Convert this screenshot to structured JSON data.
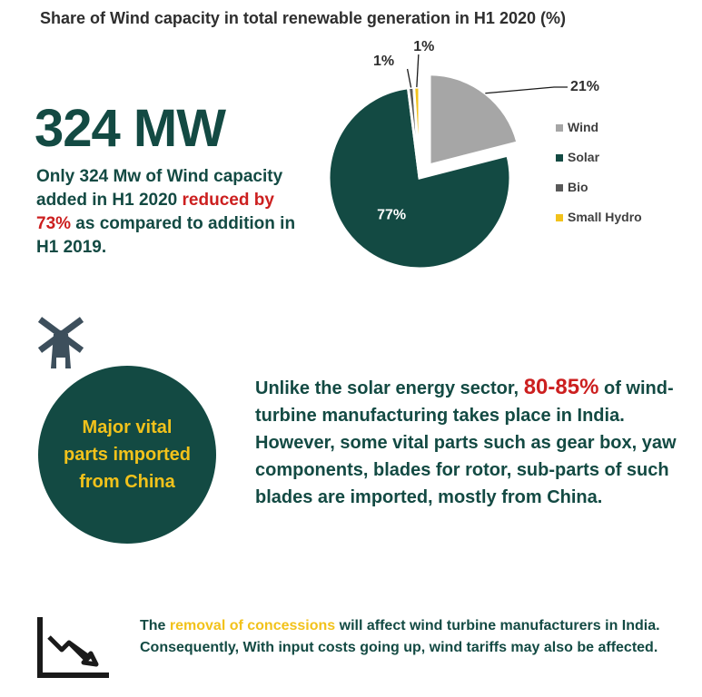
{
  "colors": {
    "wind": "#a6a6a6",
    "solar": "#134a43",
    "bio": "#595959",
    "small_hydro": "#f2c21b",
    "accent_red": "#cc1f1f",
    "accent_yellow": "#f2c21b"
  },
  "chart_data": {
    "type": "pie",
    "title": "Share of Wind capacity in total renewable generation in H1 2020 (%)",
    "categories": [
      "Wind",
      "Solar",
      "Bio",
      "Small Hydro"
    ],
    "values": [
      21,
      77,
      1,
      1
    ],
    "labels": [
      "21%",
      "77%",
      "1%",
      "1%"
    ],
    "exploded": "Wind",
    "legend": "right"
  },
  "headline": {
    "big_number": "324 MW",
    "text_1": "Only 324 Mw of Wind capacity added in H1 2020 ",
    "highlight": "reduced by 73%",
    "text_2": " as compared to addition in H1 2019."
  },
  "icons": {
    "windmill": "windmill-icon",
    "trend": "downward-trend-icon"
  },
  "circle": {
    "text": "Major vital parts imported from China"
  },
  "body": {
    "text_1": "Unlike the solar energy sector, ",
    "highlight": "80-85%",
    "text_2": " of wind-turbine manufacturing takes place in India. However, some vital parts such as gear box, yaw components, blades for rotor, sub-parts of such blades are imported, mostly from China."
  },
  "footer": {
    "text_1": "The ",
    "highlight": "removal of concessions",
    "text_2": " will affect wind turbine manufacturers in India. Consequently, With input costs going up, wind tariffs may also be affected."
  }
}
